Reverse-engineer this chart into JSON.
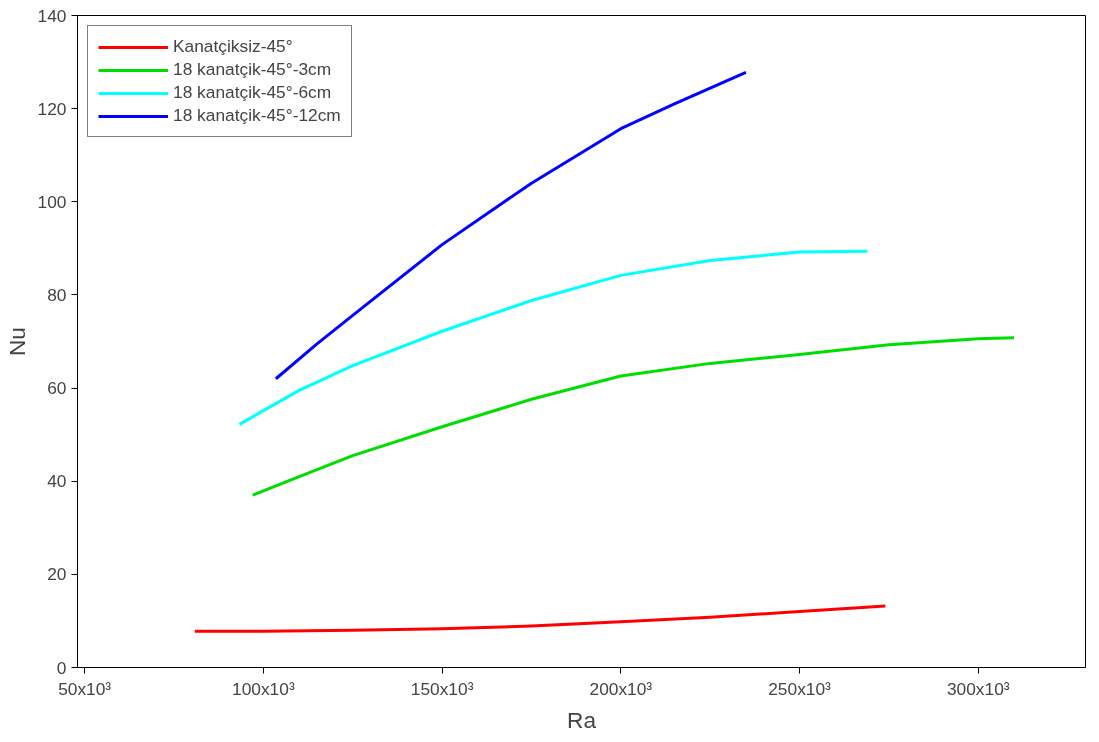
{
  "chart_data": {
    "type": "line",
    "xlabel": "Ra",
    "ylabel": "Nu",
    "xlim": [
      48000,
      330000
    ],
    "ylim": [
      0,
      140
    ],
    "xticks": [
      {
        "value": 50000,
        "label": "50x10³"
      },
      {
        "value": 100000,
        "label": "100x10³"
      },
      {
        "value": 150000,
        "label": "150x10³"
      },
      {
        "value": 200000,
        "label": "200x10³"
      },
      {
        "value": 250000,
        "label": "250x10³"
      },
      {
        "value": 300000,
        "label": "300x10³"
      }
    ],
    "yticks": [
      0,
      20,
      40,
      60,
      80,
      100,
      120,
      140
    ],
    "grid": false,
    "legend": "top left",
    "line_style": "solid",
    "marker": "none",
    "series": [
      {
        "name": "Kanatçiksiz-45°",
        "color": "#ff0000",
        "x": [
          80800,
          100000,
          125000,
          150000,
          175000,
          200000,
          225000,
          250000,
          274000
        ],
        "values": [
          7.8,
          7.8,
          8.0,
          8.3,
          8.9,
          9.8,
          10.8,
          12.0,
          13.2
        ]
      },
      {
        "name": "18 kanatçik-45°-3cm",
        "color": "#00dd00",
        "x": [
          97000,
          110000,
          125000,
          150000,
          175000,
          200000,
          225000,
          250000,
          275000,
          300000,
          310000
        ],
        "values": [
          37.0,
          41.0,
          45.5,
          51.7,
          57.6,
          62.6,
          65.3,
          67.2,
          69.3,
          70.6,
          70.8
        ]
      },
      {
        "name": "18 kanatçik-45°-6cm",
        "color": "#00ffff",
        "x": [
          93300,
          110000,
          125000,
          150000,
          175000,
          200000,
          225000,
          250000,
          269000
        ],
        "values": [
          52.2,
          59.5,
          64.8,
          72.2,
          78.8,
          84.2,
          87.4,
          89.2,
          89.4
        ]
      },
      {
        "name": "18 kanatçik-45°-12cm",
        "color": "#0000ff",
        "x": [
          103500,
          115000,
          125000,
          150000,
          175000,
          200000,
          215000,
          235000
        ],
        "values": [
          62.0,
          69.5,
          75.6,
          90.8,
          104.0,
          115.7,
          121.0,
          127.8
        ]
      }
    ]
  }
}
